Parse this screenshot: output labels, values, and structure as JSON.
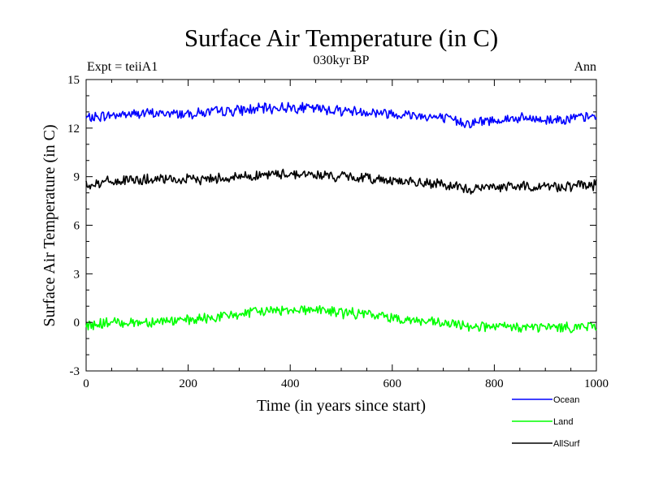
{
  "chart_data": {
    "type": "line",
    "title": "Surface Air Temperature (in C)",
    "subtitle": "030kyr BP",
    "left_annotation": "Expt = teiiA1",
    "right_annotation": "Ann",
    "xlabel": "Time (in years since start)",
    "ylabel": "Surface Air Temperature (in C)",
    "xlim": [
      0,
      1000
    ],
    "ylim": [
      -3,
      15
    ],
    "xticks": [
      0,
      200,
      400,
      600,
      800,
      1000
    ],
    "yticks": [
      -3,
      0,
      3,
      6,
      9,
      12,
      15
    ],
    "x": [
      0,
      50,
      100,
      150,
      200,
      250,
      300,
      350,
      400,
      450,
      500,
      550,
      600,
      650,
      700,
      750,
      800,
      850,
      900,
      950,
      1000
    ],
    "series": [
      {
        "name": "Ocean",
        "color": "#0000ff",
        "values": [
          12.6,
          12.8,
          12.9,
          12.9,
          12.9,
          13.0,
          13.1,
          13.2,
          13.3,
          13.2,
          13.1,
          13.0,
          12.9,
          12.8,
          12.6,
          12.3,
          12.5,
          12.6,
          12.5,
          12.6,
          12.7
        ]
      },
      {
        "name": "Land",
        "color": "#00ff00",
        "values": [
          -0.2,
          0.0,
          0.0,
          0.1,
          0.1,
          0.3,
          0.5,
          0.7,
          0.8,
          0.8,
          0.6,
          0.5,
          0.3,
          0.1,
          -0.1,
          -0.2,
          -0.3,
          -0.3,
          -0.3,
          -0.3,
          -0.2
        ]
      },
      {
        "name": "AllSurf",
        "color": "#000000",
        "values": [
          8.5,
          8.7,
          8.8,
          8.8,
          8.8,
          8.9,
          9.0,
          9.1,
          9.2,
          9.1,
          9.0,
          8.9,
          8.8,
          8.6,
          8.5,
          8.2,
          8.4,
          8.4,
          8.4,
          8.4,
          8.5
        ]
      }
    ],
    "legend": "bottom-right",
    "grid": false
  }
}
